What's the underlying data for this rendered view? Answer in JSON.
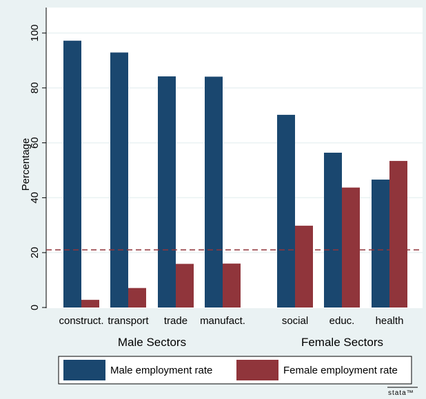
{
  "chart_data": {
    "type": "bar",
    "ylabel": "Percentage",
    "ylim": [
      0,
      100
    ],
    "yticks": [
      0,
      20,
      40,
      60,
      80,
      100
    ],
    "categories": [
      "construct.",
      "transport",
      "trade",
      "manufact.",
      "social",
      "educ.",
      "health"
    ],
    "groups": [
      {
        "label": "Male Sectors",
        "categories": [
          "construct.",
          "transport",
          "trade",
          "manufact."
        ]
      },
      {
        "label": "Female Sectors",
        "categories": [
          "social",
          "educ.",
          "health"
        ]
      }
    ],
    "series": [
      {
        "name": "Male employment rate",
        "color": "#1a476f",
        "values": [
          97.2,
          92.9,
          84.2,
          84.1,
          70.2,
          56.4,
          46.6
        ]
      },
      {
        "name": "Female employment rate",
        "color": "#90353b",
        "values": [
          2.8,
          7.1,
          15.9,
          16.0,
          29.8,
          43.7,
          53.4
        ]
      }
    ],
    "reference_line": {
      "y": 21,
      "style": "dashed",
      "color": "#90353b"
    },
    "legend_position": "bottom",
    "grid": true
  },
  "watermark": "stata™"
}
